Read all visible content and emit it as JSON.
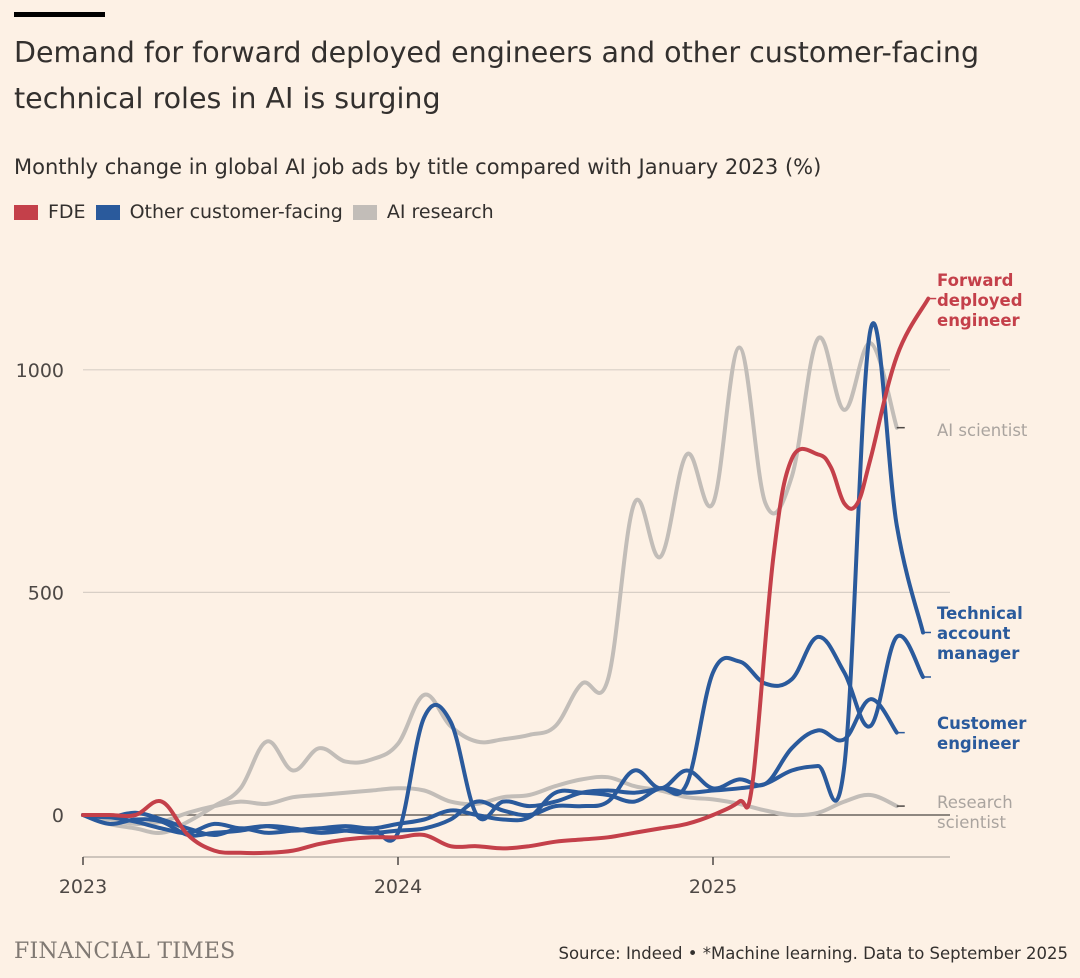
{
  "header": {
    "title": "Demand for forward deployed engineers and other customer-facing technical roles in AI is surging",
    "subtitle": "Monthly change in global AI job ads by title compared with January 2023 (%)"
  },
  "legend": [
    {
      "label": "FDE",
      "color": "#c4404a"
    },
    {
      "label": "Other customer-facing",
      "color": "#2a5a9c"
    },
    {
      "label": "AI research",
      "color": "#c2bdb8"
    }
  ],
  "footer": {
    "brand": "FINANCIAL TIMES",
    "source": "Source: Indeed • *Machine learning. Data to September 2025"
  },
  "chart_data": {
    "type": "line",
    "x_unit": "months since Jan 2023",
    "x_ticks": [
      {
        "label": "2023",
        "x": 0
      },
      {
        "label": "2024",
        "x": 12
      },
      {
        "label": "2025",
        "x": 24
      }
    ],
    "y_ticks": [
      0,
      500,
      1000
    ],
    "ylim": [
      -95,
      1260
    ],
    "xlim": [
      0,
      33.3
    ],
    "grid": true,
    "series": [
      {
        "name": "AI scientist",
        "group": "AI research",
        "color": "#c2bdb8",
        "label_lines": [
          "AI scientist"
        ],
        "points": [
          [
            0,
            0
          ],
          [
            1,
            -20
          ],
          [
            2,
            -30
          ],
          [
            3,
            -40
          ],
          [
            4,
            -15
          ],
          [
            5,
            20
          ],
          [
            6,
            60
          ],
          [
            7,
            165
          ],
          [
            8,
            100
          ],
          [
            9,
            150
          ],
          [
            10,
            120
          ],
          [
            11,
            125
          ],
          [
            12,
            160
          ],
          [
            13,
            270
          ],
          [
            14,
            200
          ],
          [
            15,
            165
          ],
          [
            16,
            170
          ],
          [
            17,
            180
          ],
          [
            18,
            200
          ],
          [
            19,
            295
          ],
          [
            20,
            305
          ],
          [
            21,
            700
          ],
          [
            22,
            580
          ],
          [
            23,
            810
          ],
          [
            24,
            700
          ],
          [
            25,
            1050
          ],
          [
            26,
            700
          ],
          [
            27,
            760
          ],
          [
            28,
            1070
          ],
          [
            29,
            910
          ],
          [
            30,
            1060
          ],
          [
            31,
            870
          ]
        ]
      },
      {
        "name": "Research scientist",
        "group": "AI research",
        "color": "#c2bdb8",
        "label_lines": [
          "Research",
          "scientist"
        ],
        "points": [
          [
            0,
            0
          ],
          [
            1,
            -10
          ],
          [
            2,
            -20
          ],
          [
            3,
            -15
          ],
          [
            4,
            5
          ],
          [
            5,
            20
          ],
          [
            6,
            30
          ],
          [
            7,
            25
          ],
          [
            8,
            40
          ],
          [
            9,
            45
          ],
          [
            10,
            50
          ],
          [
            11,
            55
          ],
          [
            12,
            60
          ],
          [
            13,
            55
          ],
          [
            14,
            30
          ],
          [
            15,
            25
          ],
          [
            16,
            40
          ],
          [
            17,
            45
          ],
          [
            18,
            65
          ],
          [
            19,
            80
          ],
          [
            20,
            85
          ],
          [
            21,
            65
          ],
          [
            22,
            55
          ],
          [
            23,
            40
          ],
          [
            24,
            35
          ],
          [
            25,
            25
          ],
          [
            26,
            10
          ],
          [
            27,
            0
          ],
          [
            28,
            5
          ],
          [
            29,
            30
          ],
          [
            30,
            45
          ],
          [
            31,
            20
          ]
        ]
      },
      {
        "name": "Technical account manager",
        "group": "Other customer-facing",
        "color": "#2a5a9c",
        "label_lines": [
          "Technical",
          "account",
          "manager"
        ],
        "points": [
          [
            0,
            0
          ],
          [
            1,
            -20
          ],
          [
            2,
            -10
          ],
          [
            3,
            -15
          ],
          [
            4,
            -45
          ],
          [
            5,
            -40
          ],
          [
            6,
            -35
          ],
          [
            7,
            -25
          ],
          [
            8,
            -30
          ],
          [
            9,
            -40
          ],
          [
            10,
            -35
          ],
          [
            11,
            -30
          ],
          [
            12,
            -40
          ],
          [
            13,
            220
          ],
          [
            14,
            210
          ],
          [
            15,
            0
          ],
          [
            16,
            30
          ],
          [
            17,
            20
          ],
          [
            18,
            30
          ],
          [
            19,
            50
          ],
          [
            20,
            55
          ],
          [
            21,
            50
          ],
          [
            22,
            60
          ],
          [
            23,
            70
          ],
          [
            24,
            320
          ],
          [
            25,
            345
          ],
          [
            26,
            295
          ],
          [
            27,
            305
          ],
          [
            28,
            400
          ],
          [
            29,
            320
          ],
          [
            30,
            200
          ],
          [
            31,
            400
          ],
          [
            32,
            310
          ]
        ]
      },
      {
        "name": "Customer engineer",
        "group": "Other customer-facing",
        "color": "#2a5a9c",
        "label_lines": [
          "Customer",
          "engineer"
        ],
        "points": [
          [
            0,
            0
          ],
          [
            1,
            -5
          ],
          [
            2,
            5
          ],
          [
            3,
            -10
          ],
          [
            4,
            -30
          ],
          [
            5,
            -45
          ],
          [
            6,
            -30
          ],
          [
            7,
            -40
          ],
          [
            8,
            -35
          ],
          [
            9,
            -30
          ],
          [
            10,
            -35
          ],
          [
            11,
            -40
          ],
          [
            12,
            -35
          ],
          [
            13,
            -30
          ],
          [
            14,
            -10
          ],
          [
            15,
            30
          ],
          [
            16,
            10
          ],
          [
            17,
            0
          ],
          [
            18,
            20
          ],
          [
            19,
            20
          ],
          [
            20,
            30
          ],
          [
            21,
            100
          ],
          [
            22,
            60
          ],
          [
            23,
            100
          ],
          [
            24,
            60
          ],
          [
            25,
            80
          ],
          [
            26,
            70
          ],
          [
            27,
            150
          ],
          [
            28,
            190
          ],
          [
            29,
            170
          ],
          [
            30,
            260
          ],
          [
            31,
            185
          ]
        ]
      },
      {
        "name": "Other customer-facing 3",
        "group": "Other customer-facing",
        "color": "#2a5a9c",
        "label_lines": [],
        "points": [
          [
            0,
            0
          ],
          [
            1,
            -5
          ],
          [
            2,
            -15
          ],
          [
            3,
            -30
          ],
          [
            4,
            -40
          ],
          [
            5,
            -20
          ],
          [
            6,
            -30
          ],
          [
            7,
            -25
          ],
          [
            8,
            -35
          ],
          [
            9,
            -30
          ],
          [
            10,
            -25
          ],
          [
            11,
            -30
          ],
          [
            12,
            -20
          ],
          [
            13,
            -10
          ],
          [
            14,
            10
          ],
          [
            15,
            0
          ],
          [
            16,
            -10
          ],
          [
            17,
            -5
          ],
          [
            18,
            50
          ],
          [
            19,
            50
          ],
          [
            20,
            45
          ],
          [
            21,
            30
          ],
          [
            22,
            60
          ],
          [
            23,
            50
          ],
          [
            24,
            55
          ],
          [
            25,
            60
          ],
          [
            26,
            70
          ],
          [
            27,
            100
          ],
          [
            28,
            110
          ],
          [
            29,
            110
          ],
          [
            30,
            1090
          ],
          [
            31,
            650
          ],
          [
            32,
            410
          ]
        ]
      },
      {
        "name": "Forward deployed engineer",
        "group": "FDE",
        "color": "#c4404a",
        "label_lines": [
          "Forward",
          "deployed",
          "engineer"
        ],
        "points": [
          [
            0,
            0
          ],
          [
            1,
            0
          ],
          [
            2,
            0
          ],
          [
            3,
            30
          ],
          [
            4,
            -45
          ],
          [
            5,
            -80
          ],
          [
            6,
            -85
          ],
          [
            7,
            -85
          ],
          [
            8,
            -80
          ],
          [
            9,
            -65
          ],
          [
            10,
            -55
          ],
          [
            11,
            -50
          ],
          [
            12,
            -50
          ],
          [
            13,
            -45
          ],
          [
            14,
            -70
          ],
          [
            15,
            -70
          ],
          [
            16,
            -75
          ],
          [
            17,
            -70
          ],
          [
            18,
            -60
          ],
          [
            19,
            -55
          ],
          [
            20,
            -50
          ],
          [
            21,
            -40
          ],
          [
            22,
            -30
          ],
          [
            23,
            -20
          ],
          [
            24,
            0
          ],
          [
            25,
            30
          ],
          [
            25.5,
            70
          ],
          [
            26.3,
            580
          ],
          [
            27,
            800
          ],
          [
            28,
            810
          ],
          [
            28.5,
            780
          ],
          [
            29,
            700
          ],
          [
            29.5,
            700
          ],
          [
            30,
            800
          ],
          [
            31,
            1030
          ],
          [
            32.2,
            1160
          ]
        ]
      }
    ]
  }
}
